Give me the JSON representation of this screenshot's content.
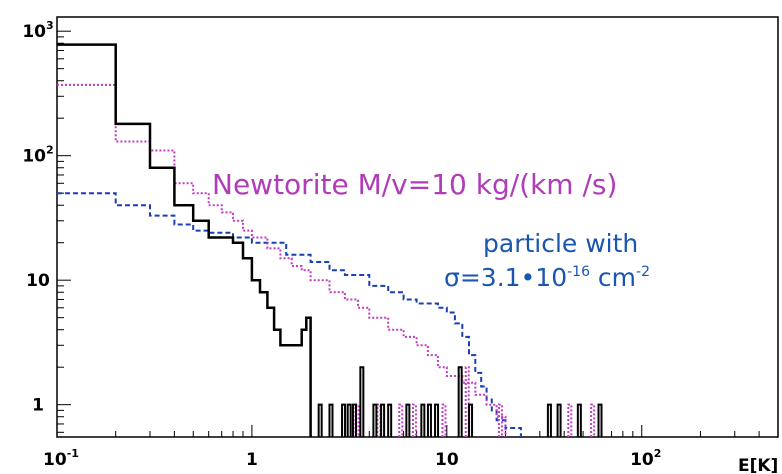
{
  "chart_data": {
    "type": "line",
    "title": "",
    "xlabel": "E[K]",
    "ylabel": "",
    "xscale": "log",
    "yscale": "log",
    "xlim": [
      0.1,
      500
    ],
    "ylim": [
      0.55,
      1300
    ],
    "grid": false,
    "x_ticks": [
      {
        "base": "10",
        "exp": "-1"
      },
      {
        "base": "1",
        "exp": ""
      },
      {
        "base": "10",
        "exp": ""
      },
      {
        "base": "10",
        "exp": "2"
      }
    ],
    "y_ticks": [
      {
        "base": "10",
        "exp": "3"
      },
      {
        "base": "10",
        "exp": "2"
      },
      {
        "base": "10",
        "exp": ""
      },
      {
        "base": "1",
        "exp": ""
      }
    ],
    "annotations": {
      "newtorite": "Newtorite M/v=10 kg/(km /s)",
      "particle_line1": "particle with",
      "particle_sigma": "σ=3.1•10",
      "particle_exp1": "-16",
      "particle_unit": " cm",
      "particle_exp2": "-2"
    },
    "colors": {
      "newtorite": "#c03cc0",
      "particle": "#1a3fb0",
      "annotation_newtorite": "#b03cb8",
      "annotation_particle": "#1a56b0",
      "axis": "#000000"
    },
    "series": [
      {
        "style": "solid-black",
        "bins": [
          [
            0.1,
            780
          ],
          [
            0.2,
            180
          ],
          [
            0.3,
            80
          ],
          [
            0.4,
            40
          ],
          [
            0.5,
            30
          ],
          [
            0.6,
            22
          ],
          [
            0.7,
            22
          ],
          [
            0.8,
            20
          ],
          [
            0.9,
            15
          ],
          [
            1.0,
            10
          ],
          [
            1.1,
            8
          ],
          [
            1.2,
            6
          ],
          [
            1.3,
            4
          ],
          [
            1.4,
            3
          ],
          [
            1.5,
            3
          ],
          [
            1.6,
            3
          ],
          [
            1.7,
            3
          ],
          [
            1.8,
            4
          ],
          [
            1.9,
            5
          ]
        ],
        "end": 2.0
      },
      {
        "style": "dotted-magenta",
        "bins": [
          [
            0.1,
            370
          ],
          [
            0.2,
            130
          ],
          [
            0.3,
            110
          ],
          [
            0.4,
            60
          ],
          [
            0.5,
            50
          ],
          [
            0.6,
            40
          ],
          [
            0.7,
            35
          ],
          [
            0.8,
            30
          ],
          [
            0.9,
            25
          ],
          [
            1.0,
            22
          ],
          [
            1.2,
            18
          ],
          [
            1.4,
            15
          ],
          [
            1.6,
            13
          ],
          [
            1.8,
            12
          ],
          [
            2.0,
            10
          ],
          [
            2.5,
            8
          ],
          [
            3.0,
            7
          ],
          [
            3.5,
            6
          ],
          [
            4.0,
            5
          ],
          [
            5.0,
            4
          ],
          [
            6.0,
            3.5
          ],
          [
            7.0,
            3
          ],
          [
            8.0,
            2.5
          ],
          [
            9.0,
            2
          ],
          [
            10.0,
            1.7
          ],
          [
            12.0,
            1.5
          ],
          [
            14.0,
            1.2
          ],
          [
            16.0,
            1
          ],
          [
            18.0,
            0.8
          ]
        ],
        "end": 20.0
      },
      {
        "style": "dashed-blue",
        "bins": [
          [
            0.1,
            50
          ],
          [
            0.2,
            40
          ],
          [
            0.3,
            33
          ],
          [
            0.4,
            28
          ],
          [
            0.5,
            25
          ],
          [
            0.6,
            24
          ],
          [
            0.8,
            22
          ],
          [
            1.0,
            20
          ],
          [
            1.5,
            16
          ],
          [
            2.0,
            14
          ],
          [
            2.5,
            12
          ],
          [
            3.0,
            11
          ],
          [
            4.0,
            9
          ],
          [
            5.0,
            8
          ],
          [
            6.0,
            7
          ],
          [
            7.0,
            6.5
          ],
          [
            8.0,
            6.5
          ],
          [
            9.0,
            6
          ],
          [
            10.0,
            5.5
          ],
          [
            11.0,
            4.5
          ],
          [
            12.0,
            3.5
          ],
          [
            13.0,
            2.5
          ],
          [
            14.0,
            1.8
          ],
          [
            15.0,
            1.4
          ],
          [
            16.0,
            1.1
          ],
          [
            17.0,
            0.9
          ],
          [
            18.0,
            0.75
          ],
          [
            20.0,
            0.65
          ]
        ],
        "end": 24.0
      },
      {
        "style": "solid-black-spikes",
        "spikes": [
          [
            2.2,
            1
          ],
          [
            2.5,
            1
          ],
          [
            2.9,
            1
          ],
          [
            3.1,
            1
          ],
          [
            3.3,
            1
          ],
          [
            3.6,
            2
          ],
          [
            4.2,
            1
          ],
          [
            4.6,
            1
          ],
          [
            5.0,
            1
          ],
          [
            6.2,
            1
          ],
          [
            7.4,
            1
          ],
          [
            8.0,
            1
          ],
          [
            8.7,
            1
          ],
          [
            11.5,
            2
          ],
          [
            13.0,
            1
          ],
          [
            33.0,
            1
          ],
          [
            37.0,
            1
          ],
          [
            47.0,
            1
          ],
          [
            60.0,
            1
          ]
        ]
      },
      {
        "style": "dotted-magenta-spikes",
        "spikes": [
          [
            3.4,
            1
          ],
          [
            4.4,
            1
          ],
          [
            5.7,
            1
          ],
          [
            6.7,
            1
          ],
          [
            9.5,
            1
          ],
          [
            12.5,
            2
          ],
          [
            18.5,
            1
          ],
          [
            42.0,
            1
          ],
          [
            55.0,
            1
          ]
        ]
      }
    ]
  }
}
